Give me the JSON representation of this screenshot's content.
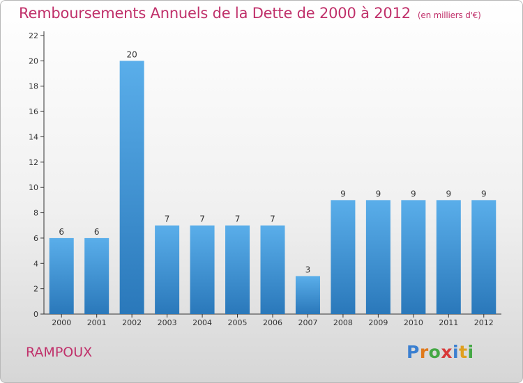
{
  "header": {
    "title": "Remboursements Annuels de la Dette de 2000 à 2012",
    "unit": "(en milliers d'€)"
  },
  "footer": {
    "place": "RAMPOUX",
    "logo": "Proxiti",
    "logo_colors": [
      "#3a7fd0",
      "#e07a1c",
      "#44a844",
      "#d83a3a",
      "#3a7fd0",
      "#e0a020",
      "#44a844"
    ]
  },
  "colors": {
    "bar_top": "#5aaeea",
    "bar_bottom": "#2a78ba",
    "axis": "#333333",
    "grid": "#dddddd",
    "text": "#333333",
    "title": "#c0306a"
  },
  "chart_data": {
    "type": "bar",
    "title": "Remboursements Annuels de la Dette de 2000 à 2012",
    "subtitle": "(en milliers d'€)",
    "categories": [
      "2000",
      "2001",
      "2002",
      "2003",
      "2004",
      "2005",
      "2006",
      "2007",
      "2008",
      "2009",
      "2010",
      "2011",
      "2012"
    ],
    "values": [
      6,
      6,
      20,
      7,
      7,
      7,
      7,
      3,
      9,
      9,
      9,
      9,
      9
    ],
    "data_labels": [
      "6",
      "6",
      "20",
      "7",
      "7",
      "7",
      "7",
      "3",
      "9",
      "9",
      "9",
      "9",
      "9"
    ],
    "ylim": [
      0,
      22
    ],
    "yticks": [
      "0",
      "2",
      "4",
      "6",
      "8",
      "10",
      "12",
      "14",
      "16",
      "18",
      "20",
      "22"
    ],
    "grid": false,
    "legend": false
  }
}
